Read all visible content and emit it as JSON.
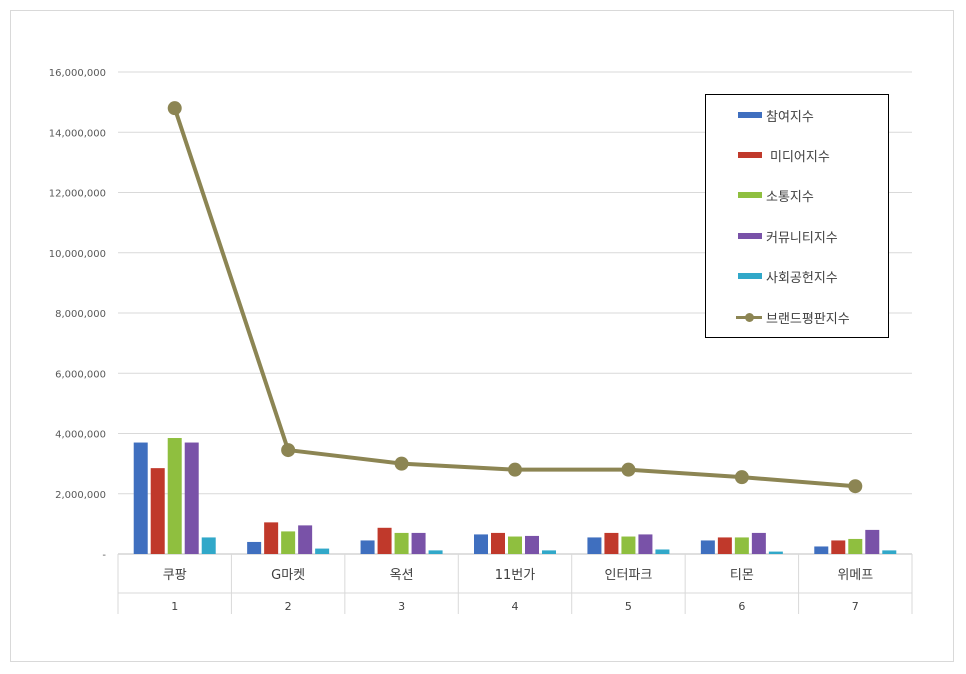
{
  "chart_data": {
    "type": "bar",
    "categories": [
      "쿠팡",
      "G마켓",
      "옥션",
      "11번가",
      "인터파크",
      "티몬",
      "위메프"
    ],
    "ranks": [
      "1",
      "2",
      "3",
      "4",
      "5",
      "6",
      "7"
    ],
    "ylim": [
      0,
      16000000
    ],
    "yticks": [
      0,
      2000000,
      4000000,
      6000000,
      8000000,
      10000000,
      12000000,
      14000000,
      16000000
    ],
    "ytick_labels": [
      "-",
      "2,000,000",
      "4,000,000",
      "6,000,000",
      "8,000,000",
      "10,000,000",
      "12,000,000",
      "14,000,000",
      "16,000,000"
    ],
    "grid": true,
    "legend_position": "top-right",
    "series": [
      {
        "name": "참여지수",
        "kind": "bar",
        "color": "#3f6fbf",
        "values": [
          3700000,
          400000,
          450000,
          650000,
          550000,
          450000,
          250000
        ]
      },
      {
        "name": "미디어지수",
        "kind": "bar",
        "color": "#c0392b",
        "values": [
          2850000,
          1050000,
          870000,
          700000,
          700000,
          550000,
          450000
        ]
      },
      {
        "name": "소통지수",
        "kind": "bar",
        "color": "#8fbf3f",
        "values": [
          3850000,
          750000,
          700000,
          580000,
          580000,
          550000,
          500000
        ]
      },
      {
        "name": "커뮤니티지수",
        "kind": "bar",
        "color": "#7952a8",
        "values": [
          3700000,
          950000,
          700000,
          600000,
          650000,
          700000,
          800000
        ]
      },
      {
        "name": "사회공헌지수",
        "kind": "bar",
        "color": "#31a8c9",
        "values": [
          550000,
          180000,
          120000,
          120000,
          150000,
          80000,
          120000
        ]
      },
      {
        "name": "브랜드평판지수",
        "kind": "line",
        "color": "#8c8553",
        "values": [
          14800000,
          3450000,
          3000000,
          2800000,
          2800000,
          2550000,
          2250000
        ]
      }
    ]
  }
}
